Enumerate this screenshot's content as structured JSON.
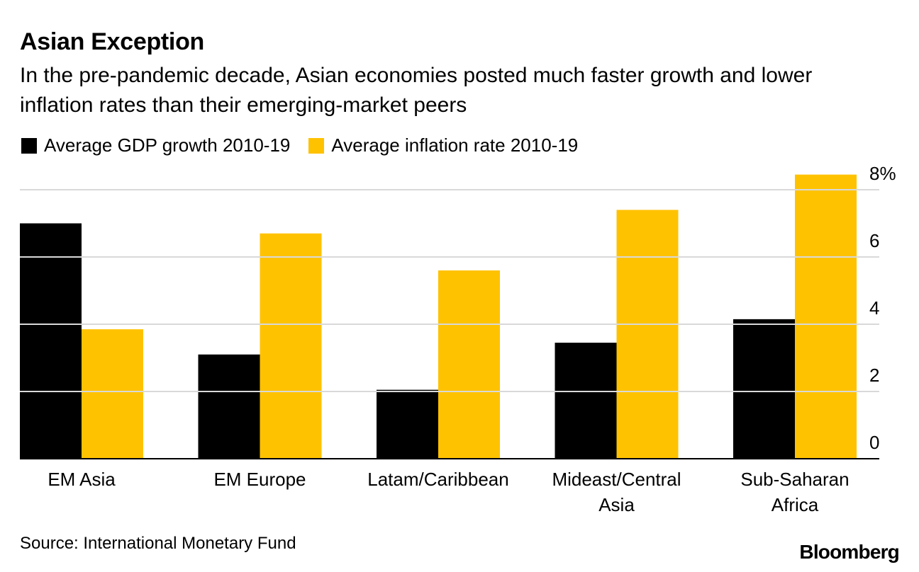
{
  "chart_data": {
    "type": "bar",
    "title": "Asian Exception",
    "subtitle": "In the pre-pandemic decade, Asian economies posted much faster growth and lower inflation rates than their emerging-market peers",
    "categories": [
      [
        "EM Asia"
      ],
      [
        "EM Europe"
      ],
      [
        "Latam/Caribbean"
      ],
      [
        "Mideast/Central",
        "Asia"
      ],
      [
        "Sub-Saharan",
        "Africa"
      ]
    ],
    "series": [
      {
        "name": "Average GDP growth 2010-19",
        "color": "#000000",
        "values": [
          7.0,
          3.1,
          2.05,
          3.45,
          4.15
        ]
      },
      {
        "name": "Average inflation rate 2010-19",
        "color": "#FFC200",
        "values": [
          3.85,
          6.7,
          5.6,
          7.4,
          8.45
        ]
      }
    ],
    "y_ticks": [
      {
        "value": 0,
        "label": "0"
      },
      {
        "value": 2,
        "label": "2"
      },
      {
        "value": 4,
        "label": "4"
      },
      {
        "value": 6,
        "label": "6"
      },
      {
        "value": 8,
        "label": "8%"
      }
    ],
    "ylim": [
      0,
      8
    ],
    "grid": true,
    "legend_position": "top-left",
    "source": "Source: International Monetary Fund",
    "brand": "Bloomberg"
  }
}
